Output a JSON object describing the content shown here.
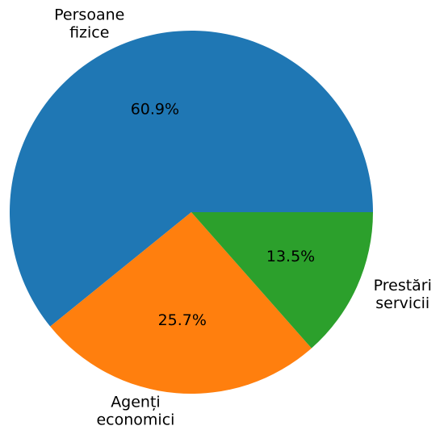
{
  "chart_data": {
    "type": "pie",
    "categories": [
      "Persoane\nfizice",
      "Agenți\neconomici",
      "Prestări\nservicii"
    ],
    "values": [
      60.9,
      25.7,
      13.5
    ],
    "value_labels": [
      "60.9%",
      "25.7%",
      "13.5%"
    ],
    "colors": [
      "#1f77b4",
      "#ff7f0e",
      "#2ca02c"
    ]
  }
}
